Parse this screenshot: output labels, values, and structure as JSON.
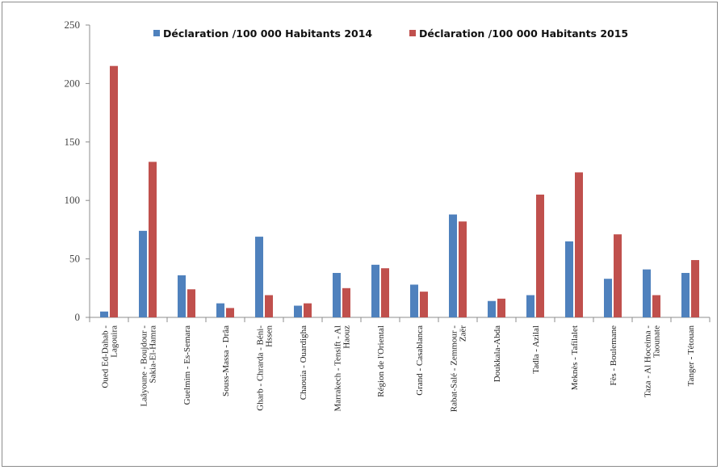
{
  "chart_data": {
    "type": "bar",
    "title": "",
    "xlabel": "",
    "ylabel": "",
    "ylim": [
      0,
      250
    ],
    "yticks": [
      0,
      50,
      100,
      150,
      200,
      250
    ],
    "grid": false,
    "legend_position": "top",
    "colors": [
      "#4f81bd",
      "#c0504d"
    ],
    "categories": [
      [
        "Oued Ed-Dahab -",
        "Lagouira"
      ],
      [
        "Laâyoune - Boujdour -",
        "Sakia-El-Hamra"
      ],
      [
        "Guelmim - Es-Semara"
      ],
      [
        "Souss-Massa - Drâa"
      ],
      [
        "Gharb - Chrarda - Béni-",
        "Hssen"
      ],
      [
        "Chaouia - Ouardigha"
      ],
      [
        "Marrakech - Tensift - Al",
        "Haouz"
      ],
      [
        "Région de l'Oriental"
      ],
      [
        "Grand - Casablanca"
      ],
      [
        "Rabat-Salé - Zemmour -",
        "Zaër"
      ],
      [
        "Doukkala-Abda"
      ],
      [
        "Tadla - Azilal"
      ],
      [
        "Meknès - Tafilalet"
      ],
      [
        "Fès - Boulemane"
      ],
      [
        "Taza - Al Hoceima -",
        "Taounate"
      ],
      [
        "Tanger - Tétouan"
      ]
    ],
    "series": [
      {
        "name": "Déclaration /100 000 Habitants  2014",
        "values": [
          5,
          74,
          36,
          12,
          69,
          10,
          38,
          45,
          28,
          88,
          14,
          19,
          65,
          33,
          41,
          38
        ]
      },
      {
        "name": "Déclaration /100 000 Habitants  2015",
        "values": [
          215,
          133,
          24,
          8,
          19,
          12,
          25,
          42,
          22,
          82,
          16,
          105,
          124,
          71,
          19,
          49
        ]
      }
    ]
  }
}
